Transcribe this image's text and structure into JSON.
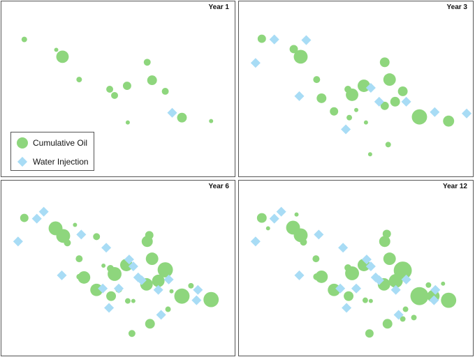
{
  "colors": {
    "oil": "#8ed67d",
    "water": "#a8dcf5"
  },
  "legend": {
    "oil_label": "Cumulative Oil",
    "water_label": "Water Injection"
  },
  "chart_data": [
    {
      "type": "scatter",
      "title": "Year 1",
      "xlim": [
        0,
        336
      ],
      "ylim": [
        0,
        253
      ],
      "series": [
        {
          "name": "Cumulative Oil",
          "marker": "circle",
          "points": [
            {
              "x": 33,
              "y": 55,
              "size": 4
            },
            {
              "x": 79,
              "y": 70,
              "size": 3
            },
            {
              "x": 88,
              "y": 80,
              "size": 9
            },
            {
              "x": 112,
              "y": 113,
              "size": 4
            },
            {
              "x": 156,
              "y": 127,
              "size": 5
            },
            {
              "x": 163,
              "y": 136,
              "size": 5
            },
            {
              "x": 181,
              "y": 122,
              "size": 6
            },
            {
              "x": 210,
              "y": 88,
              "size": 5
            },
            {
              "x": 217,
              "y": 114,
              "size": 7
            },
            {
              "x": 236,
              "y": 130,
              "size": 5
            },
            {
              "x": 260,
              "y": 168,
              "size": 7
            },
            {
              "x": 182,
              "y": 175,
              "size": 3
            },
            {
              "x": 302,
              "y": 173,
              "size": 3
            }
          ]
        },
        {
          "name": "Water Injection",
          "marker": "diamond",
          "points": [
            {
              "x": 246,
              "y": 161,
              "size": 5
            }
          ]
        }
      ]
    },
    {
      "type": "scatter",
      "title": "Year 3",
      "xlim": [
        0,
        337
      ],
      "ylim": [
        0,
        253
      ],
      "series": [
        {
          "name": "Cumulative Oil",
          "marker": "circle",
          "points": [
            {
              "x": 33,
              "y": 54,
              "size": 6
            },
            {
              "x": 79,
              "y": 69,
              "size": 6
            },
            {
              "x": 89,
              "y": 80,
              "size": 10
            },
            {
              "x": 112,
              "y": 113,
              "size": 5
            },
            {
              "x": 119,
              "y": 140,
              "size": 7
            },
            {
              "x": 137,
              "y": 159,
              "size": 6
            },
            {
              "x": 157,
              "y": 127,
              "size": 5
            },
            {
              "x": 163,
              "y": 135,
              "size": 9
            },
            {
              "x": 169,
              "y": 157,
              "size": 3
            },
            {
              "x": 159,
              "y": 168,
              "size": 4
            },
            {
              "x": 180,
              "y": 122,
              "size": 9
            },
            {
              "x": 210,
              "y": 88,
              "size": 7
            },
            {
              "x": 217,
              "y": 113,
              "size": 9
            },
            {
              "x": 236,
              "y": 130,
              "size": 7
            },
            {
              "x": 225,
              "y": 145,
              "size": 7
            },
            {
              "x": 210,
              "y": 151,
              "size": 6
            },
            {
              "x": 260,
              "y": 167,
              "size": 11
            },
            {
              "x": 302,
              "y": 173,
              "size": 8
            },
            {
              "x": 183,
              "y": 175,
              "size": 3
            },
            {
              "x": 215,
              "y": 207,
              "size": 4
            },
            {
              "x": 189,
              "y": 221,
              "size": 3
            }
          ]
        },
        {
          "name": "Water Injection",
          "marker": "diamond",
          "points": [
            {
              "x": 24,
              "y": 89,
              "size": 5
            },
            {
              "x": 51,
              "y": 55,
              "size": 5
            },
            {
              "x": 97,
              "y": 56,
              "size": 5
            },
            {
              "x": 87,
              "y": 137,
              "size": 5
            },
            {
              "x": 190,
              "y": 125,
              "size": 5
            },
            {
              "x": 202,
              "y": 145,
              "size": 5
            },
            {
              "x": 241,
              "y": 145,
              "size": 5
            },
            {
              "x": 282,
              "y": 160,
              "size": 5
            },
            {
              "x": 328,
              "y": 162,
              "size": 5
            },
            {
              "x": 154,
              "y": 185,
              "size": 5
            }
          ]
        }
      ]
    },
    {
      "type": "scatter",
      "title": "Year 6",
      "xlim": [
        0,
        336
      ],
      "ylim": [
        0,
        253
      ],
      "series": [
        {
          "name": "Cumulative Oil",
          "marker": "circle",
          "points": [
            {
              "x": 33,
              "y": 54,
              "size": 6
            },
            {
              "x": 78,
              "y": 69,
              "size": 10
            },
            {
              "x": 89,
              "y": 80,
              "size": 10
            },
            {
              "x": 95,
              "y": 90,
              "size": 5
            },
            {
              "x": 106,
              "y": 64,
              "size": 3
            },
            {
              "x": 112,
              "y": 113,
              "size": 5
            },
            {
              "x": 119,
              "y": 140,
              "size": 9
            },
            {
              "x": 112,
              "y": 139,
              "size": 4
            },
            {
              "x": 137,
              "y": 158,
              "size": 9
            },
            {
              "x": 137,
              "y": 81,
              "size": 5
            },
            {
              "x": 147,
              "y": 123,
              "size": 3
            },
            {
              "x": 157,
              "y": 127,
              "size": 5
            },
            {
              "x": 163,
              "y": 135,
              "size": 10
            },
            {
              "x": 158,
              "y": 167,
              "size": 7
            },
            {
              "x": 169,
              "y": 157,
              "size": 5
            },
            {
              "x": 180,
              "y": 122,
              "size": 9
            },
            {
              "x": 182,
              "y": 174,
              "size": 4
            },
            {
              "x": 190,
              "y": 174,
              "size": 3
            },
            {
              "x": 210,
              "y": 88,
              "size": 8
            },
            {
              "x": 213,
              "y": 79,
              "size": 6
            },
            {
              "x": 217,
              "y": 113,
              "size": 9
            },
            {
              "x": 236,
              "y": 129,
              "size": 11
            },
            {
              "x": 226,
              "y": 145,
              "size": 9
            },
            {
              "x": 209,
              "y": 150,
              "size": 9
            },
            {
              "x": 240,
              "y": 186,
              "size": 4
            },
            {
              "x": 245,
              "y": 160,
              "size": 3
            },
            {
              "x": 273,
              "y": 152,
              "size": 4
            },
            {
              "x": 260,
              "y": 167,
              "size": 11
            },
            {
              "x": 302,
              "y": 172,
              "size": 11
            },
            {
              "x": 214,
              "y": 207,
              "size": 7
            },
            {
              "x": 188,
              "y": 221,
              "size": 5
            }
          ]
        },
        {
          "name": "Water Injection",
          "marker": "diamond",
          "points": [
            {
              "x": 24,
              "y": 88,
              "size": 5
            },
            {
              "x": 51,
              "y": 55,
              "size": 5
            },
            {
              "x": 61,
              "y": 45,
              "size": 5
            },
            {
              "x": 115,
              "y": 78,
              "size": 5
            },
            {
              "x": 151,
              "y": 97,
              "size": 5
            },
            {
              "x": 87,
              "y": 137,
              "size": 5
            },
            {
              "x": 184,
              "y": 114,
              "size": 5
            },
            {
              "x": 190,
              "y": 124,
              "size": 5
            },
            {
              "x": 197,
              "y": 140,
              "size": 5
            },
            {
              "x": 202,
              "y": 144,
              "size": 5
            },
            {
              "x": 241,
              "y": 143,
              "size": 5
            },
            {
              "x": 226,
              "y": 158,
              "size": 5
            },
            {
              "x": 146,
              "y": 156,
              "size": 5
            },
            {
              "x": 169,
              "y": 156,
              "size": 5
            },
            {
              "x": 155,
              "y": 184,
              "size": 5
            },
            {
              "x": 283,
              "y": 158,
              "size": 5
            },
            {
              "x": 281,
              "y": 173,
              "size": 5
            },
            {
              "x": 230,
              "y": 194,
              "size": 5
            }
          ]
        }
      ]
    },
    {
      "type": "scatter",
      "title": "Year 12",
      "xlim": [
        0,
        337
      ],
      "ylim": [
        0,
        253
      ],
      "series": [
        {
          "name": "Cumulative Oil",
          "marker": "circle",
          "points": [
            {
              "x": 33,
              "y": 54,
              "size": 7
            },
            {
              "x": 42,
              "y": 69,
              "size": 3
            },
            {
              "x": 83,
              "y": 49,
              "size": 3
            },
            {
              "x": 78,
              "y": 68,
              "size": 10
            },
            {
              "x": 89,
              "y": 79,
              "size": 10
            },
            {
              "x": 93,
              "y": 89,
              "size": 5
            },
            {
              "x": 111,
              "y": 113,
              "size": 5
            },
            {
              "x": 112,
              "y": 139,
              "size": 5
            },
            {
              "x": 119,
              "y": 139,
              "size": 9
            },
            {
              "x": 137,
              "y": 158,
              "size": 9
            },
            {
              "x": 157,
              "y": 126,
              "size": 5
            },
            {
              "x": 163,
              "y": 134,
              "size": 10
            },
            {
              "x": 158,
              "y": 167,
              "size": 7
            },
            {
              "x": 169,
              "y": 156,
              "size": 5
            },
            {
              "x": 180,
              "y": 122,
              "size": 9
            },
            {
              "x": 182,
              "y": 173,
              "size": 4
            },
            {
              "x": 190,
              "y": 174,
              "size": 3
            },
            {
              "x": 210,
              "y": 88,
              "size": 8
            },
            {
              "x": 213,
              "y": 77,
              "size": 6
            },
            {
              "x": 217,
              "y": 113,
              "size": 9
            },
            {
              "x": 236,
              "y": 130,
              "size": 13
            },
            {
              "x": 226,
              "y": 145,
              "size": 10
            },
            {
              "x": 209,
              "y": 150,
              "size": 9
            },
            {
              "x": 240,
              "y": 186,
              "size": 4
            },
            {
              "x": 236,
              "y": 200,
              "size": 4
            },
            {
              "x": 252,
              "y": 198,
              "size": 4
            },
            {
              "x": 273,
              "y": 151,
              "size": 4
            },
            {
              "x": 260,
              "y": 167,
              "size": 13
            },
            {
              "x": 280,
              "y": 167,
              "size": 9
            },
            {
              "x": 302,
              "y": 173,
              "size": 11
            },
            {
              "x": 294,
              "y": 149,
              "size": 3
            },
            {
              "x": 214,
              "y": 207,
              "size": 7
            },
            {
              "x": 188,
              "y": 221,
              "size": 6
            }
          ]
        },
        {
          "name": "Water Injection",
          "marker": "diamond",
          "points": [
            {
              "x": 24,
              "y": 88,
              "size": 5
            },
            {
              "x": 51,
              "y": 55,
              "size": 5
            },
            {
              "x": 61,
              "y": 45,
              "size": 5
            },
            {
              "x": 115,
              "y": 78,
              "size": 5
            },
            {
              "x": 150,
              "y": 97,
              "size": 5
            },
            {
              "x": 87,
              "y": 137,
              "size": 5
            },
            {
              "x": 184,
              "y": 114,
              "size": 5
            },
            {
              "x": 190,
              "y": 124,
              "size": 5
            },
            {
              "x": 197,
              "y": 140,
              "size": 5
            },
            {
              "x": 202,
              "y": 144,
              "size": 5
            },
            {
              "x": 241,
              "y": 143,
              "size": 5
            },
            {
              "x": 226,
              "y": 158,
              "size": 5
            },
            {
              "x": 146,
              "y": 156,
              "size": 5
            },
            {
              "x": 169,
              "y": 156,
              "size": 5
            },
            {
              "x": 155,
              "y": 184,
              "size": 5
            },
            {
              "x": 283,
              "y": 158,
              "size": 5
            },
            {
              "x": 281,
              "y": 173,
              "size": 5
            },
            {
              "x": 230,
              "y": 194,
              "size": 5
            }
          ]
        }
      ]
    }
  ]
}
